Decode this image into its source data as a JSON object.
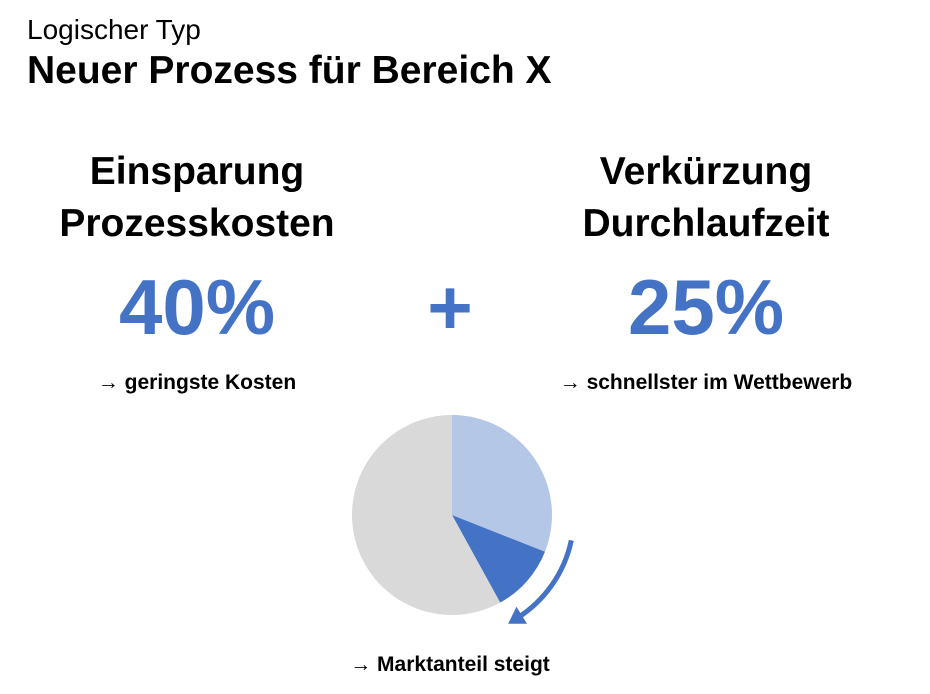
{
  "header": {
    "subtitle": "Logischer Typ",
    "title": "Neuer Prozess für Bereich X"
  },
  "metrics": [
    {
      "heading_line1": "Einsparung",
      "heading_line2": "Prozesskosten",
      "value": "40%",
      "note": "→ geringste Kosten"
    },
    {
      "heading_line1": "Verkürzung",
      "heading_line2": "Durchlaufzeit",
      "value": "25%",
      "note": "→ schnellster im Wettbewerb"
    }
  ],
  "operator": "+",
  "market": {
    "note": "→ Marktanteil steigt"
  },
  "colors": {
    "accent": "#4472C4",
    "accent_light": "#B4C7E7",
    "neutral": "#D9D9D9",
    "text": "#000000"
  },
  "chart_data": {
    "type": "pie",
    "slices": [
      {
        "fraction": 0.31,
        "color": "#B4C7E7"
      },
      {
        "fraction": 0.11,
        "color": "#4472C4"
      },
      {
        "fraction": 0.58,
        "color": "#D9D9D9"
      }
    ],
    "arrow": "clockwise"
  }
}
